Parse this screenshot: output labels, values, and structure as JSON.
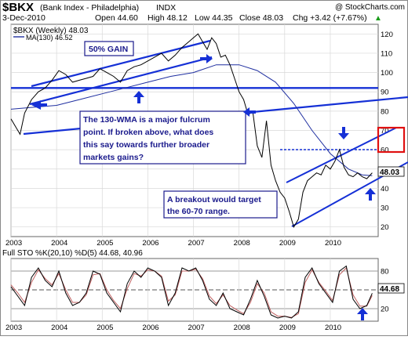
{
  "header": {
    "symbol": "$BKX",
    "name": "(Bank Index - Philadelphia)",
    "exchange": "INDX",
    "copyright": "@ StockCharts.com",
    "date": "3-Dec-2010",
    "open": "Open 44.60",
    "high": "High 48.12",
    "low": "Low 44.35",
    "close": "Close 48.03",
    "change": "Chg +3.42 (+7.67%)",
    "change_arrow": "▲"
  },
  "legend": {
    "price": "$BKX (Weekly) 48.03",
    "ma": "MA(130) 46.52"
  },
  "annotations": {
    "gain": "50% GAIN",
    "fulcrum": [
      "The 130-WMA is a major fulcrum",
      "point. If broken above, what does",
      "this say towards further broader",
      "markets gains?"
    ],
    "breakout": [
      "A breakout would target",
      "the 60-70 range."
    ]
  },
  "price_badge": "48.03",
  "sto_badge": "44.68",
  "sto_label": "Full STO %K(20,10) %D(5) 44.68, 40.96",
  "colors": {
    "price_line": "#000000",
    "ma_line": "#1f2fa0",
    "trend_line": "#1530d6",
    "box_border": "#1a1a8c",
    "annotation_text": "#1a1a8c",
    "highlight_box": "#e01010",
    "sto_k": "#000000",
    "sto_d": "#c06060"
  },
  "chart_data": [
    {
      "type": "line",
      "title": "$BKX (Weekly) 48.03",
      "x_ticks": [
        "2003",
        "2004",
        "2005",
        "2006",
        "2007",
        "2008",
        "2009",
        "2010"
      ],
      "y_ticks": [
        20,
        30,
        40,
        50,
        60,
        70,
        80,
        90,
        100,
        110,
        120
      ],
      "ylim": [
        15,
        125
      ],
      "xlim": [
        2003.0,
        2011.05
      ],
      "grid": true,
      "series": [
        {
          "name": "$BKX (Weekly)",
          "x": [
            2003.0,
            2003.1,
            2003.2,
            2003.3,
            2003.45,
            2003.6,
            2003.75,
            2003.9,
            2004.05,
            2004.2,
            2004.35,
            2004.5,
            2004.65,
            2004.8,
            2004.95,
            2005.1,
            2005.25,
            2005.4,
            2005.55,
            2005.7,
            2005.85,
            2006.0,
            2006.15,
            2006.3,
            2006.45,
            2006.6,
            2006.75,
            2006.9,
            2007.0,
            2007.1,
            2007.2,
            2007.3,
            2007.4,
            2007.5,
            2007.6,
            2007.7,
            2007.8,
            2007.9,
            2008.0,
            2008.1,
            2008.2,
            2008.3,
            2008.4,
            2008.5,
            2008.6,
            2008.7,
            2008.8,
            2008.9,
            2009.0,
            2009.1,
            2009.2,
            2009.3,
            2009.4,
            2009.5,
            2009.6,
            2009.7,
            2009.8,
            2009.9,
            2010.0,
            2010.1,
            2010.2,
            2010.3,
            2010.4,
            2010.5,
            2010.6,
            2010.7,
            2010.8,
            2010.92
          ],
          "values": [
            76,
            72,
            68,
            79,
            86,
            90,
            92,
            96,
            101,
            99,
            95,
            96,
            97,
            98,
            102,
            100,
            98,
            95,
            101,
            103,
            104,
            106,
            108,
            110,
            106,
            109,
            113,
            116,
            118,
            120,
            116,
            112,
            118,
            115,
            108,
            109,
            104,
            97,
            90,
            86,
            78,
            80,
            62,
            56,
            75,
            52,
            44,
            38,
            35,
            28,
            20,
            24,
            38,
            44,
            46,
            48,
            47,
            52,
            50,
            54,
            60,
            51,
            47,
            46,
            48,
            46,
            45,
            48.03
          ]
        },
        {
          "name": "MA(130)",
          "x": [
            2003.0,
            2003.5,
            2004.0,
            2004.5,
            2005.0,
            2005.5,
            2006.0,
            2006.5,
            2007.0,
            2007.5,
            2008.0,
            2008.4,
            2008.8,
            2009.2,
            2009.6,
            2010.0,
            2010.4,
            2010.7,
            2010.92
          ],
          "values": [
            81,
            82,
            83,
            86,
            89,
            92,
            95,
            98,
            100,
            104,
            104,
            101,
            95,
            84,
            70,
            58,
            50,
            47,
            46.52
          ]
        }
      ]
    },
    {
      "type": "line",
      "title": "Full STO %K(20,10) %D(5) 44.68, 40.96",
      "x_ticks": [
        "2003",
        "2004",
        "2005",
        "2006",
        "2007",
        "2008",
        "2009",
        "2010"
      ],
      "y_ticks": [
        20,
        50,
        80
      ],
      "ylim": [
        0,
        100
      ],
      "xlim": [
        2003.0,
        2011.05
      ],
      "grid": true,
      "series": [
        {
          "name": "%K",
          "x": [
            2003.0,
            2003.15,
            2003.3,
            2003.45,
            2003.6,
            2003.75,
            2003.9,
            2004.05,
            2004.2,
            2004.35,
            2004.5,
            2004.65,
            2004.8,
            2004.95,
            2005.1,
            2005.25,
            2005.4,
            2005.55,
            2005.7,
            2005.85,
            2006.0,
            2006.15,
            2006.3,
            2006.45,
            2006.6,
            2006.75,
            2006.9,
            2007.05,
            2007.2,
            2007.35,
            2007.5,
            2007.65,
            2007.8,
            2007.95,
            2008.1,
            2008.25,
            2008.4,
            2008.55,
            2008.7,
            2008.85,
            2009.0,
            2009.15,
            2009.3,
            2009.45,
            2009.6,
            2009.75,
            2009.9,
            2010.05,
            2010.2,
            2010.35,
            2010.5,
            2010.65,
            2010.8,
            2010.92
          ],
          "values": [
            55,
            40,
            25,
            70,
            85,
            65,
            55,
            80,
            45,
            25,
            30,
            45,
            80,
            75,
            45,
            30,
            15,
            60,
            80,
            70,
            85,
            80,
            70,
            25,
            45,
            85,
            80,
            85,
            65,
            35,
            25,
            45,
            20,
            15,
            10,
            35,
            65,
            40,
            10,
            5,
            8,
            5,
            15,
            70,
            85,
            60,
            45,
            30,
            80,
            88,
            35,
            20,
            25,
            44.68
          ]
        },
        {
          "name": "%D",
          "x": [
            2003.0,
            2003.15,
            2003.3,
            2003.45,
            2003.6,
            2003.75,
            2003.9,
            2004.05,
            2004.2,
            2004.35,
            2004.5,
            2004.65,
            2004.8,
            2004.95,
            2005.1,
            2005.25,
            2005.4,
            2005.55,
            2005.7,
            2005.85,
            2006.0,
            2006.15,
            2006.3,
            2006.45,
            2006.6,
            2006.75,
            2006.9,
            2007.05,
            2007.2,
            2007.35,
            2007.5,
            2007.65,
            2007.8,
            2007.95,
            2008.1,
            2008.25,
            2008.4,
            2008.55,
            2008.7,
            2008.85,
            2009.0,
            2009.15,
            2009.3,
            2009.45,
            2009.6,
            2009.75,
            2009.9,
            2010.05,
            2010.2,
            2010.35,
            2010.5,
            2010.65,
            2010.8,
            2010.92
          ],
          "values": [
            58,
            45,
            30,
            62,
            82,
            68,
            58,
            76,
            50,
            30,
            30,
            42,
            74,
            76,
            50,
            33,
            20,
            52,
            76,
            72,
            82,
            80,
            72,
            32,
            42,
            80,
            80,
            83,
            68,
            40,
            28,
            42,
            25,
            18,
            12,
            30,
            60,
            45,
            15,
            8,
            8,
            6,
            12,
            62,
            82,
            62,
            48,
            33,
            74,
            85,
            42,
            24,
            24,
            40.96
          ]
        }
      ]
    }
  ]
}
